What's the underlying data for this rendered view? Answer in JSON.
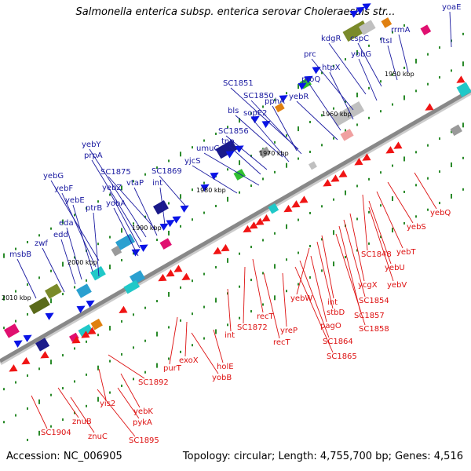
{
  "title": "Salmonella enterica subsp. enterica serovar Choleraesuis str...",
  "accession": "Accession: NC_006905",
  "summary": "Topology: circular; Length: 4,755,700 bp; Genes: 4,516",
  "colors": {
    "forward_label": "#1a1aa0",
    "reverse_label": "#dd1111",
    "forward_gene": "#0a14e6",
    "reverse_gene": "#f01414",
    "backbone": "#888888",
    "tick": "#2a8a2a"
  },
  "kbp_marks": [
    "1950 kbp",
    "1960 kbp",
    "1970 kbp",
    "1980 kbp",
    "1990 kbp",
    "2000 kbp",
    "2010 kbp"
  ],
  "forward_genes": [
    "yoaE",
    "rrmA",
    "ftsI",
    "cspC",
    "kdgR",
    "yobG",
    "prc",
    "htpX",
    "proQ",
    "yebR",
    "SC1851",
    "SC1850",
    "pphA",
    "bls",
    "sopE2",
    "SC1856",
    "tnp",
    "umuC",
    "yjcS",
    "SC1869",
    "int",
    "SC1875",
    "vtaP",
    "yebY",
    "prpA",
    "yebZ",
    "yobA",
    "yebG",
    "yebF",
    "yebE",
    "ptrB",
    "eda",
    "edd",
    "zwf",
    "msbB"
  ],
  "reverse_genes": [
    "yebQ",
    "yebS",
    "yebT",
    "SC1848",
    "yebU",
    "yebV",
    "ycgX",
    "SC1854",
    "SC1857",
    "SC1858",
    "int",
    "stbD",
    "yebW",
    "pagO",
    "SC1864",
    "SC1865",
    "yreP",
    "recT",
    "recT",
    "SC1872",
    "int",
    "holE",
    "yobB",
    "exoX",
    "purT",
    "SC1892",
    "yebK",
    "yis2",
    "pykA",
    "SC1895",
    "znuB",
    "znuC",
    "SC1904"
  ]
}
